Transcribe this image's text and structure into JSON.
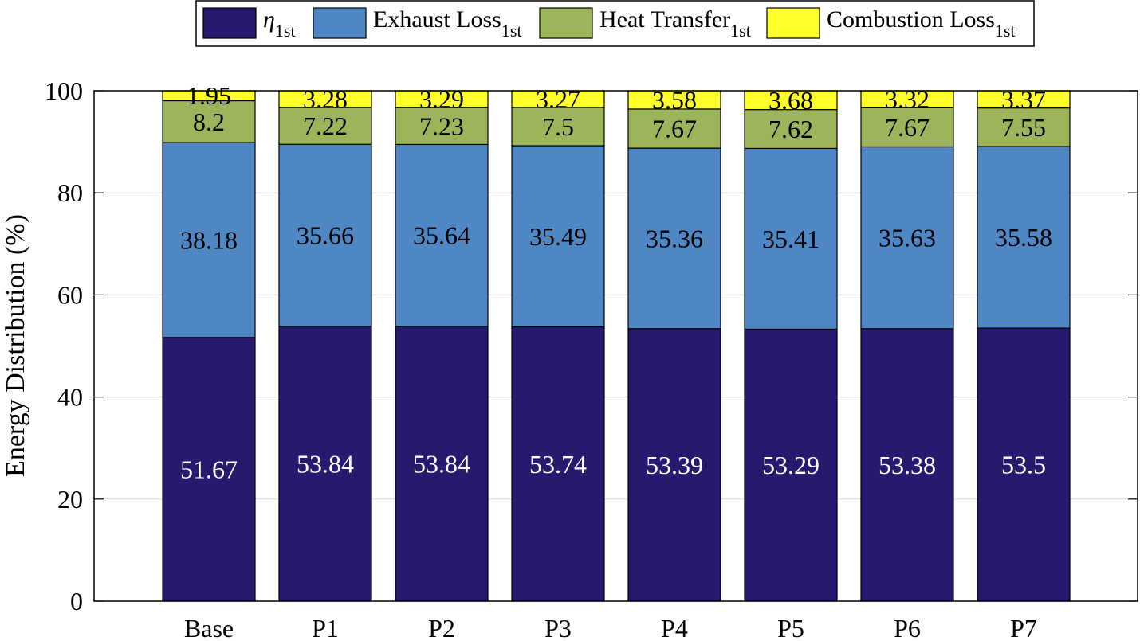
{
  "chart_data": {
    "type": "bar",
    "stacked": true,
    "categories": [
      "Base",
      "P1",
      "P2",
      "P3",
      "P4",
      "P5",
      "P6",
      "P7"
    ],
    "series": [
      {
        "name": "η",
        "name_sub": "1st",
        "color": "#251a6e",
        "label_color": "#ffffff",
        "values": [
          51.67,
          53.84,
          53.84,
          53.74,
          53.39,
          53.29,
          53.38,
          53.5
        ],
        "labels": [
          "51.67",
          "53.84",
          "53.84",
          "53.74",
          "53.39",
          "53.29",
          "53.38",
          "53.5"
        ]
      },
      {
        "name": "Exhaust Loss",
        "name_sub": "1st",
        "color": "#4e87c3",
        "label_color": "#000000",
        "values": [
          38.18,
          35.66,
          35.64,
          35.49,
          35.36,
          35.41,
          35.63,
          35.58
        ],
        "labels": [
          "38.18",
          "35.66",
          "35.64",
          "35.49",
          "35.36",
          "35.41",
          "35.63",
          "35.58"
        ]
      },
      {
        "name": "Heat Transfer",
        "name_sub": "1st",
        "color": "#9db55a",
        "label_color": "#000000",
        "values": [
          8.2,
          7.22,
          7.23,
          7.5,
          7.67,
          7.62,
          7.67,
          7.55
        ],
        "labels": [
          "8.2",
          "7.22",
          "7.23",
          "7.5",
          "7.67",
          "7.62",
          "7.67",
          "7.55"
        ]
      },
      {
        "name": "Combustion Loss",
        "name_sub": "1st",
        "color": "#ffff2a",
        "label_color": "#000000",
        "values": [
          1.95,
          3.28,
          3.29,
          3.27,
          3.58,
          3.68,
          3.32,
          3.37
        ],
        "labels": [
          "1.95",
          "3.28",
          "3.29",
          "3.27",
          "3.58",
          "3.68",
          "3.32",
          "3.37"
        ]
      }
    ],
    "ylabel": "Energy Distribution (%)",
    "xlabel": "",
    "ylim": [
      0,
      100
    ],
    "yticks": [
      "0",
      "20",
      "40",
      "60",
      "80",
      "100"
    ],
    "grid": true,
    "legend_position": "top, outside, horizontal"
  }
}
